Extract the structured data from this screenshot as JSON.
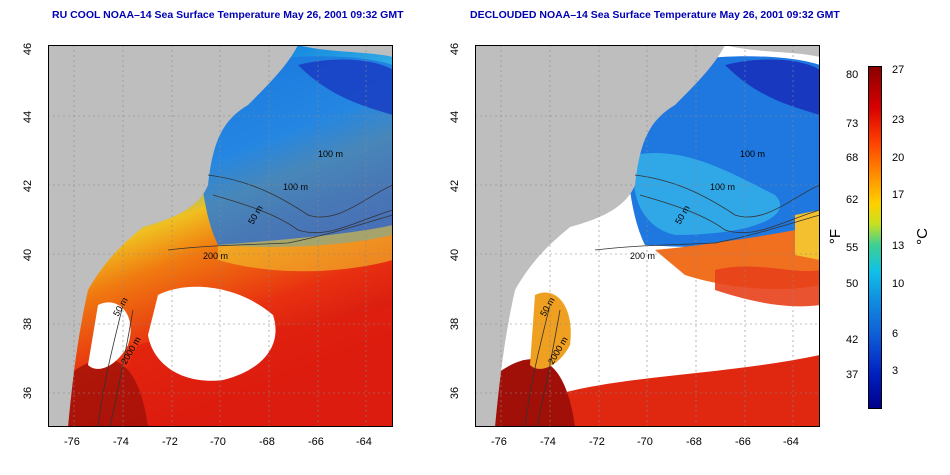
{
  "titles": {
    "left": "RU COOL NOAA–14 Sea Surface Temperature May 26, 2001 09:32 GMT",
    "right": "DECLOUDED NOAA–14 Sea Surface Temperature May 26, 2001 09:32 GMT"
  },
  "axes": {
    "lat_ticks": [
      "46",
      "44",
      "42",
      "40",
      "38",
      "36"
    ],
    "lon_ticks": [
      "-76",
      "-74",
      "-72",
      "-70",
      "-68",
      "-66",
      "-64"
    ]
  },
  "contour_labels": [
    "100 m",
    "100 m",
    "50 m",
    "200 m",
    "50 m",
    "2000 m"
  ],
  "colorbar": {
    "fahrenheit_ticks": [
      "80",
      "73",
      "68",
      "62",
      "55",
      "50",
      "42",
      "37"
    ],
    "celsius_ticks": [
      "27",
      "23",
      "20",
      "17",
      "13",
      "10",
      "6",
      "3"
    ],
    "f_unit": "°F",
    "c_unit": "°C"
  },
  "colors": {
    "land": "#bebebe",
    "cold": "#0000a0",
    "warm": "#8b0000"
  }
}
